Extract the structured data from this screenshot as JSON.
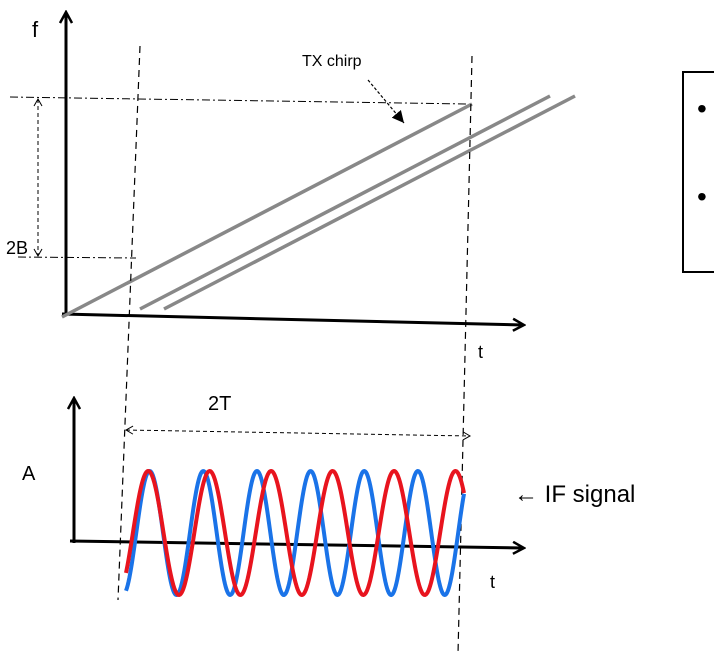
{
  "labels": {
    "top_y_axis": "f",
    "top_x_axis": "t",
    "bandwidth": "2B",
    "tx_chirp": "TX chirp",
    "bottom_y_axis": "A",
    "bottom_x_axis": "t",
    "duration": "2T",
    "if_signal": "← IF signal"
  },
  "legend_box": {
    "bullets": [
      "•",
      "•"
    ]
  },
  "colors": {
    "axes": "#000000",
    "chirp": "#888888",
    "blue_wave": "#1a73e8",
    "red_wave": "#e8141e"
  },
  "waves": {
    "blue": {
      "cycles": 6.3
    },
    "red": {
      "cycles": 5.5
    }
  }
}
